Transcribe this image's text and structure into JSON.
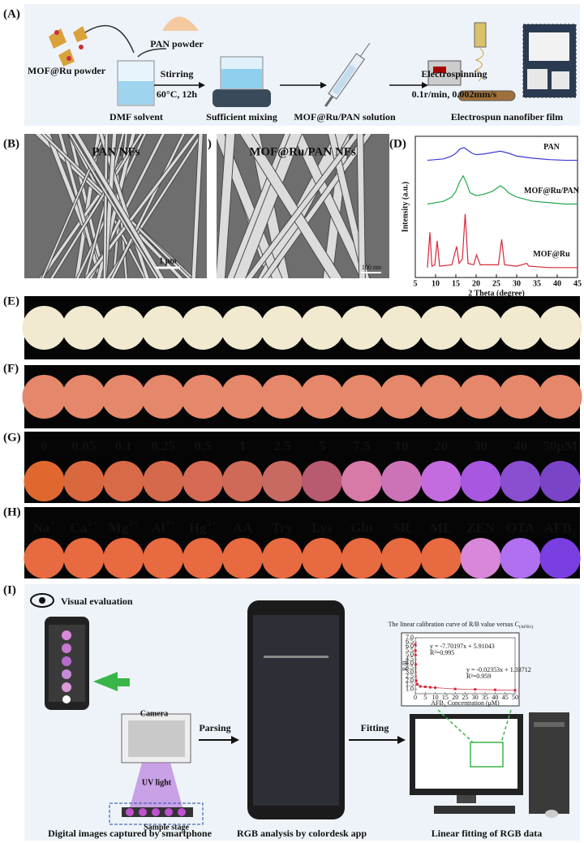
{
  "panel_a": {
    "label": "(A)",
    "mof_powder": "MOF@Ru powder",
    "pan_powder": "PAN powder",
    "dmf": "DMF solvent",
    "stirring": "Stirring",
    "stirring_conditions": "60°C, 12h",
    "mixing": "Sufficient mixing",
    "solution": "MOF@Ru/PAN solution",
    "electrospinning": "Electrospinning",
    "electrospinning_conditions": "0.1r/min, 0.002mm/s",
    "film": "Electrospun nanofiber film"
  },
  "panel_b": {
    "label": "(B)",
    "title": "PAN NFs",
    "scale": "1 μm"
  },
  "panel_c": {
    "label": "(C)",
    "title": "MOF@Ru/PAN NFs",
    "scale": "100 nm"
  },
  "panel_d": {
    "label": "(D)",
    "chart": {
      "type": "line",
      "x_label": "2 Theta (degree)",
      "y_label": "Intensity (a.u.)",
      "xlim": [
        5,
        45
      ],
      "xticks": [
        5,
        10,
        15,
        20,
        25,
        30,
        35,
        40,
        45
      ],
      "ylim": [
        0,
        10
      ],
      "series": [
        {
          "name": "PAN",
          "color": "#3a3ad8",
          "x": [
            8,
            10,
            12,
            14,
            15,
            16,
            17,
            18,
            19,
            20,
            22,
            24,
            26,
            28,
            30,
            34,
            38,
            42,
            45
          ],
          "values": [
            8.3,
            8.35,
            8.4,
            8.6,
            8.8,
            9.1,
            9.2,
            9.0,
            8.8,
            8.7,
            8.75,
            8.85,
            8.95,
            8.8,
            8.6,
            8.45,
            8.35,
            8.3,
            8.3
          ]
        },
        {
          "name": "MOF@Ru/PAN",
          "color": "#22a84a",
          "x": [
            8,
            10,
            12,
            14,
            15,
            16,
            16.8,
            17.5,
            18.5,
            20,
            22,
            24,
            25,
            26,
            27,
            28,
            30,
            34,
            38,
            42,
            45
          ],
          "values": [
            5.2,
            5.3,
            5.4,
            5.7,
            6.1,
            6.8,
            7.2,
            6.8,
            6.0,
            5.8,
            5.9,
            6.1,
            6.3,
            6.5,
            6.3,
            6.0,
            5.7,
            5.4,
            5.3,
            5.2,
            5.2
          ]
        },
        {
          "name": "MOF@Ru",
          "color": "#d8283a",
          "x": [
            8,
            8.6,
            9.1,
            9.8,
            10.4,
            11,
            14,
            15.2,
            15.8,
            16.6,
            17.3,
            18,
            19.4,
            20.1,
            21,
            25.5,
            26.3,
            27,
            30,
            32.5,
            33,
            38,
            45
          ],
          "values": [
            0.7,
            3.2,
            0.8,
            0.9,
            2.6,
            0.8,
            0.9,
            2.2,
            1.0,
            1.3,
            4.5,
            1.0,
            0.9,
            1.6,
            0.9,
            0.9,
            2.7,
            0.9,
            0.8,
            1.0,
            0.8,
            0.7,
            0.7
          ]
        }
      ]
    }
  },
  "panel_e": {
    "label": "(E)",
    "colors": [
      "#f1ead0",
      "#f1ead0",
      "#f1ead0",
      "#f1ead0",
      "#f1ead0",
      "#f1ead0",
      "#f1ead0",
      "#f1ead0",
      "#f1ead0",
      "#f1ead0",
      "#f1ead0",
      "#f1ead0",
      "#f1ead0",
      "#f1ead0"
    ]
  },
  "panel_f": {
    "label": "(F)",
    "colors": [
      "#e5876a",
      "#e5876a",
      "#e5876a",
      "#e5876a",
      "#e5876a",
      "#e5876a",
      "#e5876a",
      "#e5876a",
      "#e5876a",
      "#e5876a",
      "#e5876a",
      "#e5876a",
      "#e5876a",
      "#e5876a"
    ]
  },
  "panel_g": {
    "label": "(G)",
    "labels": [
      "0",
      "0.05",
      "0.1",
      "0.25",
      "0.5",
      "1",
      "2.5",
      "5",
      "7.5",
      "10",
      "20",
      "30",
      "40",
      "50μM"
    ],
    "colors": [
      "#e0682e",
      "#d9683f",
      "#d96a48",
      "#d5694c",
      "#d66a55",
      "#d06a58",
      "#c86a62",
      "#b85a70",
      "#d77aa8",
      "#cc73b8",
      "#c56be0",
      "#a858e0",
      "#8a4ed0",
      "#7a44c8"
    ]
  },
  "panel_h": {
    "label": "(H)",
    "labels": [
      {
        "base": "Na",
        "sup": "+"
      },
      {
        "base": "Ca",
        "sup": "2+"
      },
      {
        "base": "Mg",
        "sup": "2+"
      },
      {
        "base": "Al",
        "sup": "3+"
      },
      {
        "base": "Hg",
        "sup": "2+"
      },
      {
        "base": "AA"
      },
      {
        "base": "Try"
      },
      {
        "base": "Lys"
      },
      {
        "base": "Glu"
      },
      {
        "base": "SR"
      },
      {
        "base": "ML"
      },
      {
        "base": "ZEN"
      },
      {
        "base": "OTA"
      },
      {
        "base": "AFB",
        "sub": "1"
      }
    ],
    "colors": [
      "#e86a40",
      "#e86a40",
      "#e86a40",
      "#e86a40",
      "#e86a40",
      "#e86a40",
      "#e86a40",
      "#e86a40",
      "#e86a40",
      "#e86a40",
      "#e86a40",
      "#d987d8",
      "#b070f0",
      "#7a3fe0"
    ]
  },
  "panel_i": {
    "label": "(I)",
    "visual": "Visual evaluation",
    "camera": "Camera",
    "uv": "UV light",
    "stage": "Sample stage",
    "parsing": "Parsing",
    "fitting": "Fitting",
    "caption_left": "Digital images captured by smartphone",
    "caption_mid": "RGB analysis by colordesk app",
    "caption_right": "Linear fitting of RGB data",
    "chart": {
      "type": "scatter",
      "title": {
        "pre": "The linear calibration curve of R/B value versus C",
        "sub": "(AFB1)"
      },
      "x_label": {
        "pre": "AFB",
        "sub": "1",
        "post": " Concentration (μM)"
      },
      "y_label": "R/B",
      "fit1": "y = -7.70197x + 5.91043",
      "r1": "R²=0.995",
      "fit2": "y = -0.02353x + 1.33712",
      "r2": "R²=0.959",
      "color": "#d8283a",
      "xlim": [
        0,
        50
      ],
      "xticks": [
        0,
        5,
        10,
        15,
        20,
        25,
        30,
        35,
        40,
        45,
        50
      ],
      "ylim": [
        0.5,
        7
      ],
      "yticks": [
        {
          "value": 1,
          "label": "1.0"
        },
        {
          "value": 1.5,
          "label": "1.5"
        },
        {
          "value": 2,
          "label": "2.0"
        },
        {
          "value": 2.5,
          "label": "2.5"
        },
        {
          "value": 3,
          "label": "3.0"
        },
        {
          "value": 3.5,
          "label": "3.5"
        },
        {
          "value": 4,
          "label": "4.0"
        },
        {
          "value": 4.5,
          "label": "4.5"
        },
        {
          "value": 5,
          "label": "5.0"
        },
        {
          "value": 5.5,
          "label": "5.5"
        },
        {
          "value": 6,
          "label": "6.0"
        },
        {
          "value": 6.5,
          "label": "6.5"
        },
        {
          "value": 7,
          "label": "7.0"
        }
      ],
      "x": [
        0,
        0.05,
        0.1,
        0.25,
        0.5,
        1,
        2.5,
        5,
        7.5,
        10,
        20,
        30,
        40,
        50
      ],
      "values": [
        6.2,
        5.5,
        5.0,
        3.9,
        2.0,
        1.6,
        1.35,
        1.3,
        1.25,
        1.2,
        1.05,
        1.0,
        0.95,
        0.9
      ]
    }
  }
}
